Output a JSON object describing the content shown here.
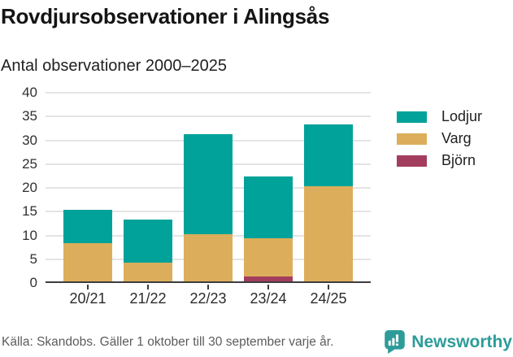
{
  "header": {
    "title": "Rovdjursobservationer i Alingsås",
    "subtitle": "Antal observationer 2000–2025"
  },
  "chart_data": {
    "type": "bar",
    "stacked": true,
    "title": "Rovdjursobservationer i Alingsås",
    "subtitle": "Antal observationer 2000–2025",
    "categories": [
      "20/21",
      "21/22",
      "22/23",
      "23/24",
      "24/25"
    ],
    "series": [
      {
        "name": "Lodjur",
        "color": "#00a299",
        "values": [
          7,
          9,
          21,
          13,
          13
        ]
      },
      {
        "name": "Varg",
        "color": "#dcae5b",
        "values": [
          8,
          4,
          10,
          8,
          20
        ]
      },
      {
        "name": "Björn",
        "color": "#a33d5e",
        "values": [
          0,
          0,
          0,
          1,
          0
        ]
      }
    ],
    "stack_order_bottom_to_top": [
      "Björn",
      "Varg",
      "Lodjur"
    ],
    "totals": [
      15,
      13,
      31,
      22,
      33
    ],
    "xlabel": "",
    "ylabel": "Antal observationer",
    "ylim": [
      0,
      40
    ],
    "yticks": [
      0,
      5,
      10,
      15,
      20,
      25,
      30,
      35,
      40
    ],
    "grid": true,
    "legend_position": "right"
  },
  "footer": {
    "source": "Källa: Skandobs. Gäller 1 oktober till 30 september varje år.",
    "brand": "Newsworthy"
  },
  "colors": {
    "lodjur": "#00a299",
    "varg": "#dcae5b",
    "bjorn": "#a33d5e",
    "axis": "#3d3d3d",
    "gridline": "#e4e4e4",
    "brand_teal": "#2d9c99"
  },
  "icons": {
    "brand_badge": "newsworthy-bar-chart-speech-bubble"
  }
}
